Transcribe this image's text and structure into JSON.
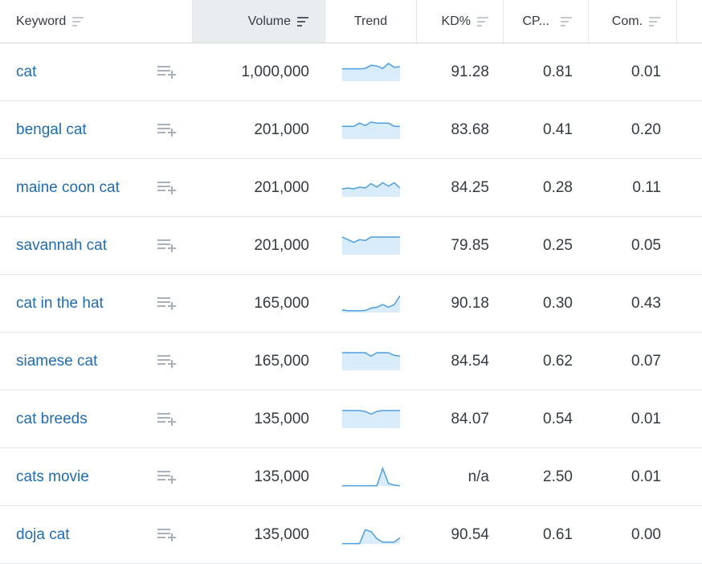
{
  "columns": {
    "keyword": "Keyword",
    "volume": "Volume",
    "trend": "Trend",
    "kd": "KD%",
    "cpc": "CP...",
    "com": "Com."
  },
  "icons": {
    "sort": "sort-icon",
    "add_to_list": "add-to-list-icon"
  },
  "colors": {
    "link": "#1f6cb3",
    "trend_line": "#4d9fe0",
    "trend_fill": "#d9ecfb",
    "active_header": "#e9edf0"
  },
  "rows": [
    {
      "keyword": "cat",
      "volume": "1,000,000",
      "kd": "91.28",
      "cpc": "0.81",
      "com": "0.01",
      "trend": [
        0.7,
        0.7,
        0.7,
        0.7,
        0.72,
        0.9,
        0.86,
        0.72,
        1.0,
        0.78,
        0.82
      ]
    },
    {
      "keyword": "bengal cat",
      "volume": "201,000",
      "kd": "83.68",
      "cpc": "0.41",
      "com": "0.20",
      "trend": [
        0.72,
        0.72,
        0.72,
        0.9,
        0.76,
        0.96,
        0.9,
        0.9,
        0.9,
        0.72,
        0.72
      ]
    },
    {
      "keyword": "maine coon cat",
      "volume": "201,000",
      "kd": "84.25",
      "cpc": "0.28",
      "com": "0.11",
      "trend": [
        0.45,
        0.5,
        0.45,
        0.55,
        0.5,
        0.75,
        0.55,
        0.8,
        0.6,
        0.8,
        0.5
      ]
    },
    {
      "keyword": "savannah cat",
      "volume": "201,000",
      "kd": "79.85",
      "cpc": "0.25",
      "com": "0.05",
      "trend": [
        1.0,
        0.85,
        0.7,
        0.85,
        0.8,
        1.0,
        1.0,
        1.0,
        1.0,
        1.0,
        1.0
      ]
    },
    {
      "keyword": "cat in the hat",
      "volume": "165,000",
      "kd": "90.18",
      "cpc": "0.30",
      "com": "0.43",
      "trend": [
        0.15,
        0.1,
        0.1,
        0.1,
        0.12,
        0.25,
        0.3,
        0.45,
        0.3,
        0.45,
        0.95
      ]
    },
    {
      "keyword": "siamese cat",
      "volume": "165,000",
      "kd": "84.54",
      "cpc": "0.62",
      "com": "0.07",
      "trend": [
        1.0,
        1.0,
        1.0,
        1.0,
        1.0,
        0.8,
        1.0,
        1.0,
        1.0,
        0.85,
        0.8
      ]
    },
    {
      "keyword": "cat breeds",
      "volume": "135,000",
      "kd": "84.07",
      "cpc": "0.54",
      "com": "0.01",
      "trend": [
        1.0,
        1.0,
        1.0,
        1.0,
        0.95,
        0.8,
        0.95,
        1.0,
        1.0,
        1.0,
        1.0
      ]
    },
    {
      "keyword": "cats movie",
      "volume": "135,000",
      "kd": "n/a",
      "cpc": "2.50",
      "com": "0.01",
      "trend": [
        0.02,
        0.02,
        0.02,
        0.02,
        0.02,
        0.02,
        0.02,
        1.0,
        0.15,
        0.05,
        0.02
      ]
    },
    {
      "keyword": "doja cat",
      "volume": "135,000",
      "kd": "90.54",
      "cpc": "0.61",
      "com": "0.00",
      "trend": [
        0.02,
        0.02,
        0.02,
        0.02,
        0.8,
        0.7,
        0.3,
        0.1,
        0.1,
        0.1,
        0.35
      ]
    }
  ]
}
